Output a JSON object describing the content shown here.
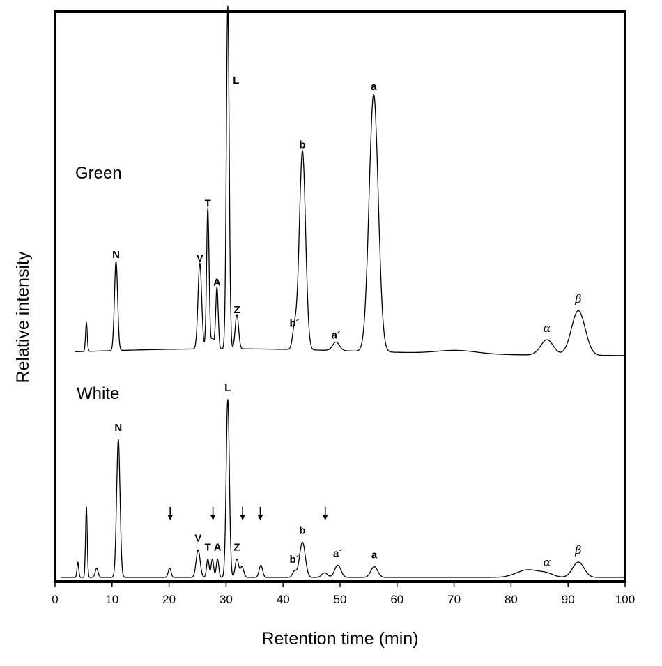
{
  "chart_data": {
    "type": "line",
    "title": "",
    "xlabel": "Retention time (min)",
    "ylabel": "Relative intensity",
    "xlim": [
      0,
      100
    ],
    "x_ticks": [
      0,
      10,
      20,
      30,
      40,
      50,
      60,
      70,
      80,
      90,
      100
    ],
    "y_ticks": [],
    "grid": false,
    "axis_color": "#000000",
    "line_color": "#000000",
    "panels": [
      {
        "name": "Green",
        "baseline_level": 0.04,
        "peaks": [
          {
            "label": "",
            "x": 5.5,
            "height": 0.085,
            "width": 0.15,
            "greek": false
          },
          {
            "label": "N",
            "x": 10.7,
            "height": 0.26,
            "width": 0.28,
            "greek": false
          },
          {
            "label": "V",
            "x": 25.4,
            "height": 0.25,
            "width": 0.32,
            "greek": false
          },
          {
            "label": "T",
            "x": 26.8,
            "height": 0.41,
            "width": 0.22,
            "greek": false
          },
          {
            "label": "",
            "x": 27.6,
            "height": 0.03,
            "width": 0.25,
            "greek": false
          },
          {
            "label": "A",
            "x": 28.4,
            "height": 0.18,
            "width": 0.22,
            "greek": false
          },
          {
            "label": "L",
            "x": 30.3,
            "height": 1.0,
            "width": 0.25,
            "greek": false
          },
          {
            "label": "Z",
            "x": 31.9,
            "height": 0.1,
            "width": 0.3,
            "greek": false
          },
          {
            "label": "b´",
            "x": 42.0,
            "height": 0.06,
            "width": 0.35,
            "greek": false
          },
          {
            "label": "b",
            "x": 43.4,
            "height": 0.58,
            "width": 0.55,
            "greek": false
          },
          {
            "label": "a´",
            "x": 49.3,
            "height": 0.025,
            "width": 0.6,
            "greek": false
          },
          {
            "label": "a",
            "x": 55.9,
            "height": 0.75,
            "width": 0.8,
            "greek": false
          },
          {
            "label": "",
            "x": 70.5,
            "height": 0.01,
            "width": 3.5,
            "greek": false
          },
          {
            "label": "α",
            "x": 86.3,
            "height": 0.045,
            "width": 1.1,
            "greek": true
          },
          {
            "label": "β",
            "x": 91.8,
            "height": 0.13,
            "width": 1.2,
            "greek": true
          }
        ]
      },
      {
        "name": "White",
        "baseline_level": 0.035,
        "peaks": [
          {
            "label": "",
            "x": 4.0,
            "height": 0.05,
            "width": 0.15,
            "greek": false
          },
          {
            "label": "",
            "x": 5.5,
            "height": 0.23,
            "width": 0.15,
            "greek": false
          },
          {
            "label": "",
            "x": 7.3,
            "height": 0.03,
            "width": 0.25,
            "greek": false
          },
          {
            "label": "N",
            "x": 11.1,
            "height": 0.45,
            "width": 0.3,
            "greek": false
          },
          {
            "label": "",
            "x": 20.1,
            "height": 0.03,
            "width": 0.25,
            "greek": false
          },
          {
            "label": "V",
            "x": 25.1,
            "height": 0.09,
            "width": 0.35,
            "greek": false
          },
          {
            "label": "T",
            "x": 26.8,
            "height": 0.06,
            "width": 0.22,
            "greek": false
          },
          {
            "label": "",
            "x": 27.6,
            "height": 0.06,
            "width": 0.22,
            "greek": false
          },
          {
            "label": "A",
            "x": 28.5,
            "height": 0.06,
            "width": 0.22,
            "greek": false
          },
          {
            "label": "L",
            "x": 30.3,
            "height": 0.58,
            "width": 0.28,
            "greek": false
          },
          {
            "label": "Z",
            "x": 31.9,
            "height": 0.06,
            "width": 0.3,
            "greek": false
          },
          {
            "label": "",
            "x": 32.8,
            "height": 0.035,
            "width": 0.3,
            "greek": false
          },
          {
            "label": "",
            "x": 36.1,
            "height": 0.04,
            "width": 0.3,
            "greek": false
          },
          {
            "label": "b´",
            "x": 42.0,
            "height": 0.02,
            "width": 0.35,
            "greek": false
          },
          {
            "label": "b",
            "x": 43.4,
            "height": 0.115,
            "width": 0.5,
            "greek": false
          },
          {
            "label": "",
            "x": 47.3,
            "height": 0.015,
            "width": 0.5,
            "greek": false
          },
          {
            "label": "a´",
            "x": 49.6,
            "height": 0.04,
            "width": 0.55,
            "greek": false
          },
          {
            "label": "a",
            "x": 56.0,
            "height": 0.035,
            "width": 0.6,
            "greek": false
          },
          {
            "label": "",
            "x": 83.0,
            "height": 0.025,
            "width": 2.0,
            "greek": false
          },
          {
            "label": "α",
            "x": 86.3,
            "height": 0.01,
            "width": 1.2,
            "greek": true
          },
          {
            "label": "β",
            "x": 91.8,
            "height": 0.05,
            "width": 1.0,
            "greek": true
          }
        ],
        "arrows_x": [
          20.2,
          27.7,
          32.9,
          36.0,
          47.4
        ]
      }
    ]
  }
}
